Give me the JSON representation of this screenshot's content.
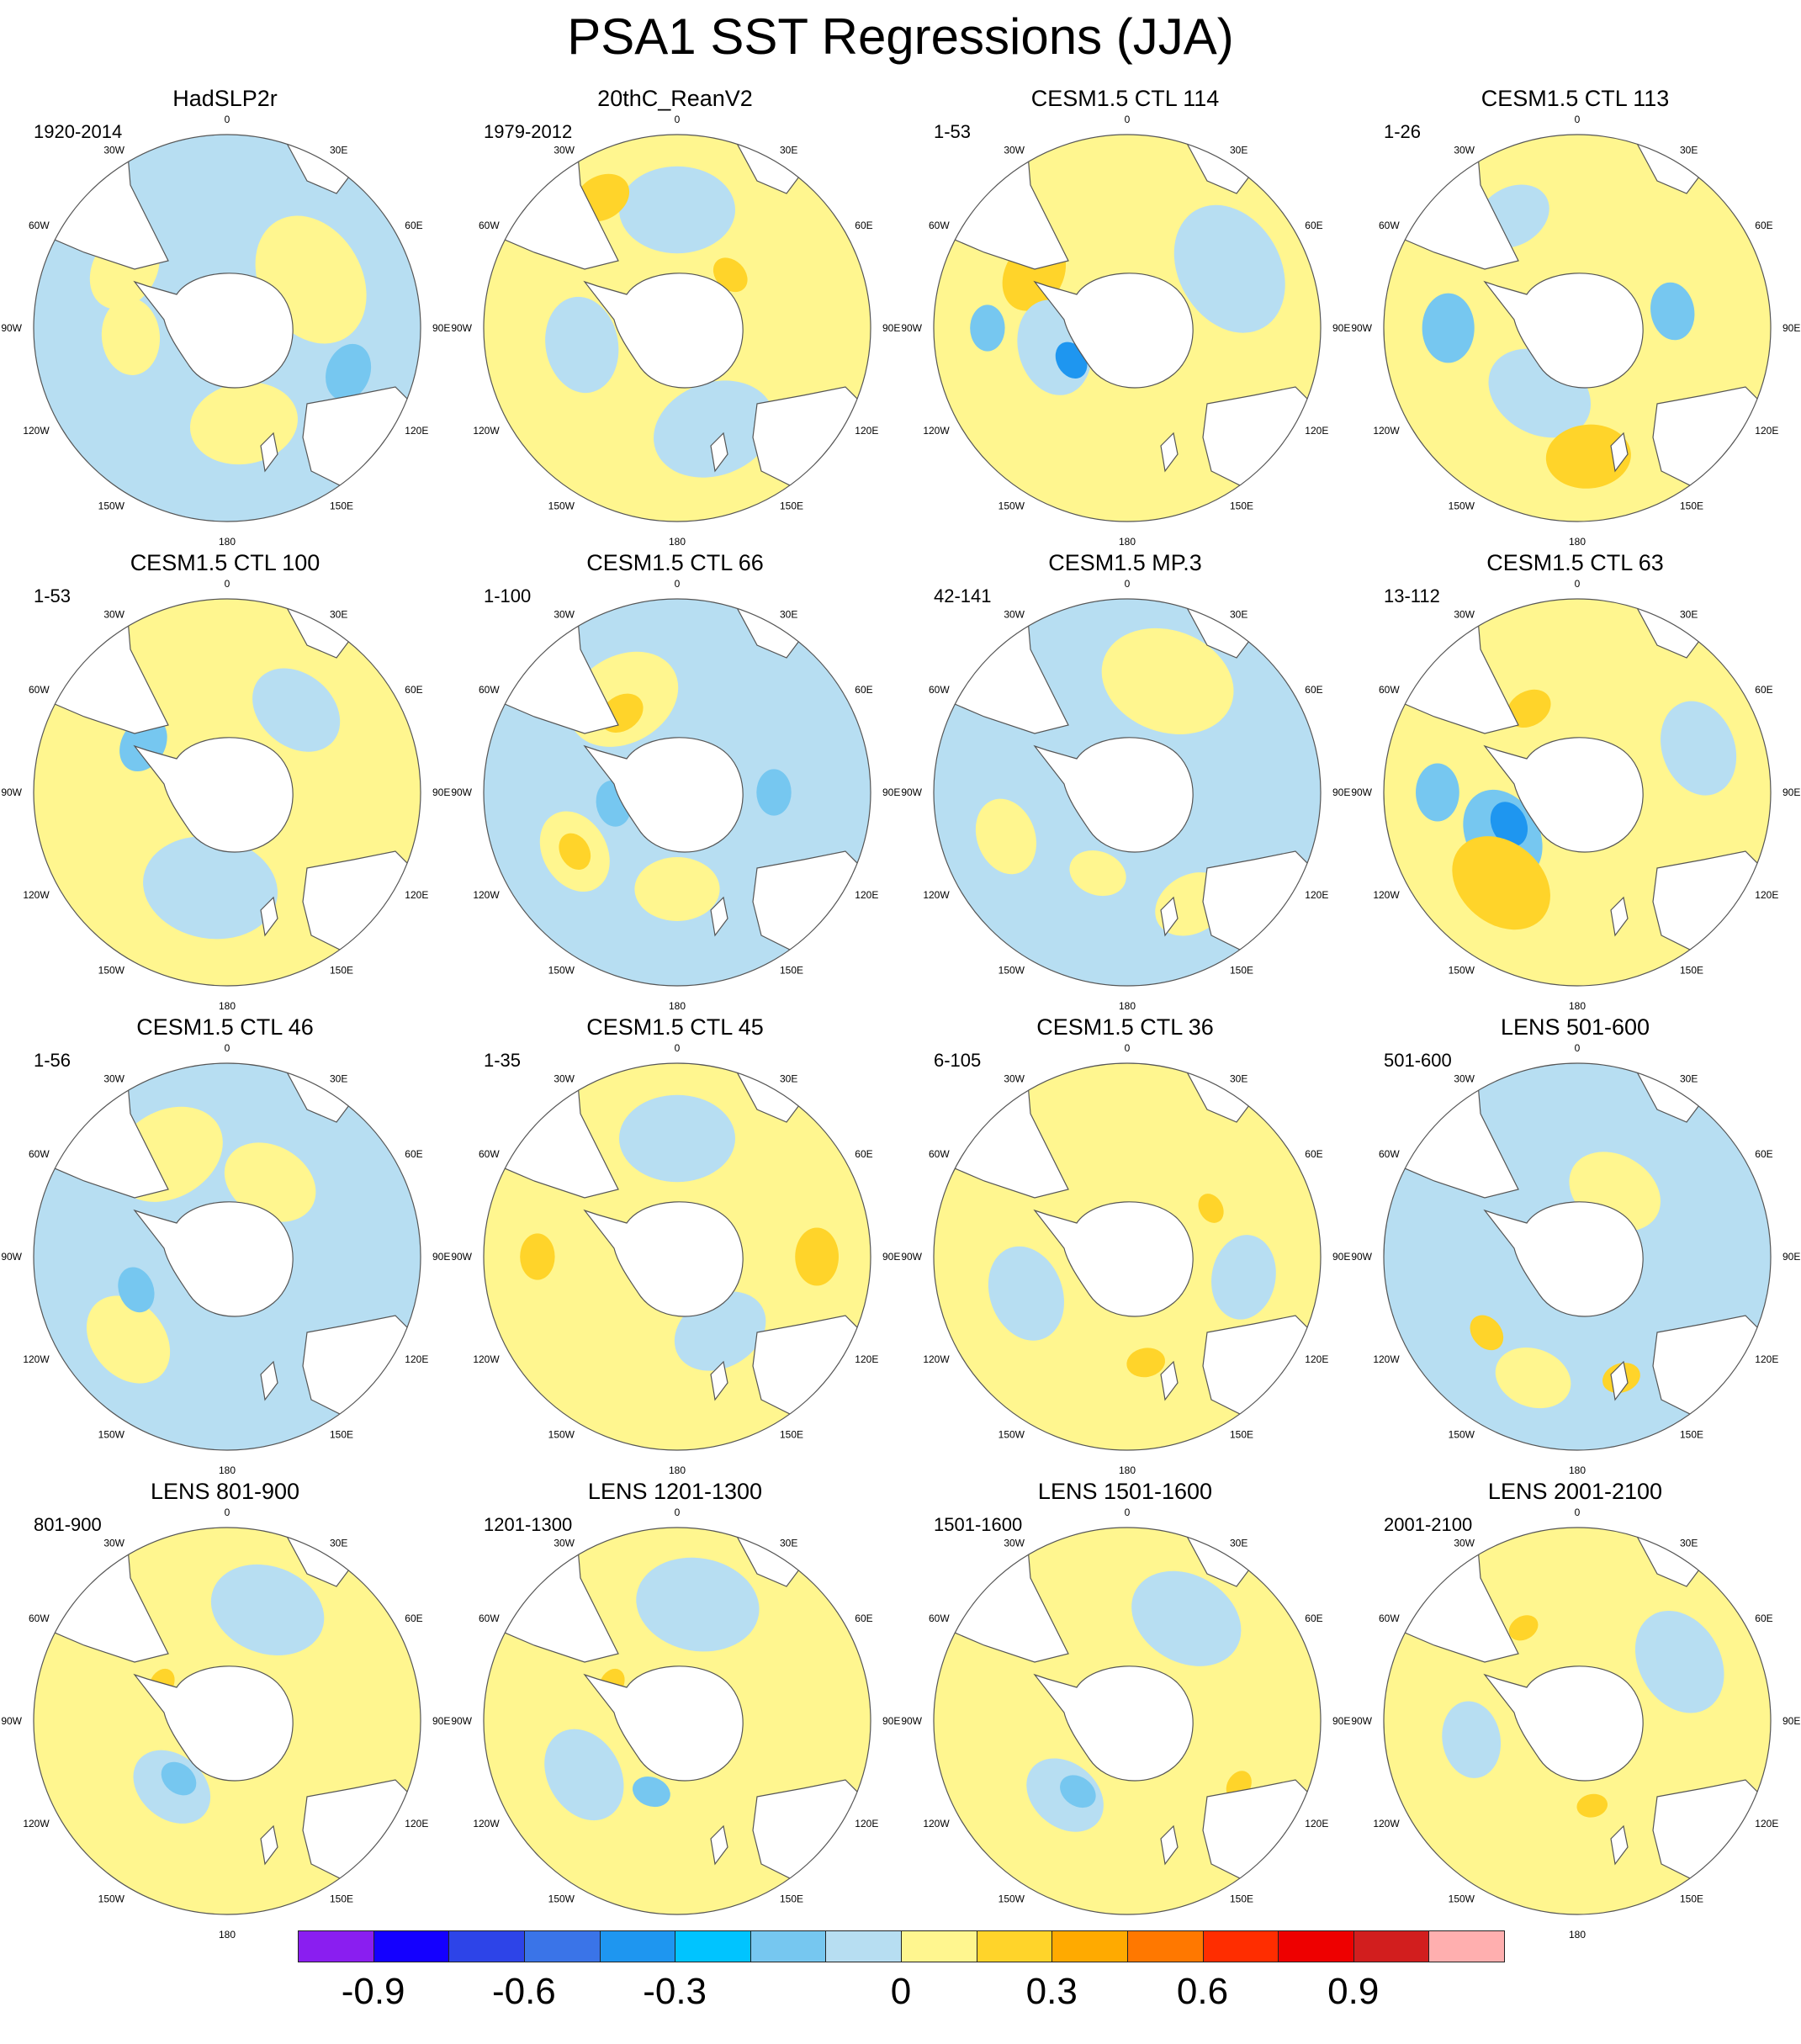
{
  "title": "PSA1 SST Regressions (JJA)",
  "colors": {
    "ocean_pos_weak": "#fff68f",
    "ocean_neg_weak": "#b7def2",
    "ocean_neg_mid": "#76c7f0",
    "ocean_neg_strong": "#1e96f0",
    "ocean_pos_mid": "#ffd42a",
    "ocean_pos_strong": "#ffaa00",
    "land": "#ffffff",
    "coastline": "#555555",
    "boundary": "#555555"
  },
  "map_labels": {
    "top": "0",
    "bottom": "180",
    "left": "90W",
    "right": "90E",
    "ul1": "30W",
    "ul2": "60W",
    "ll1": "120W",
    "ll2": "150W",
    "ur1": "30E",
    "ur2": "60E",
    "lr1": "120E",
    "lr2": "150E"
  },
  "panels": [
    {
      "title": "HadSLP2r",
      "period": "1920-2014",
      "base": "neg",
      "blobs": [
        {
          "lon": 60,
          "lat": -45,
          "r": 0.35,
          "s": 1
        },
        {
          "lon": 170,
          "lat": -45,
          "r": 0.28,
          "s": 1
        },
        {
          "lon": 265,
          "lat": -45,
          "r": 0.2,
          "s": 1
        },
        {
          "lon": 300,
          "lat": -35,
          "r": 0.22,
          "s": 1
        },
        {
          "lon": 110,
          "lat": -30,
          "r": 0.15,
          "s": -2
        }
      ]
    },
    {
      "title": "20thC_ReanV2",
      "period": "1979-2012",
      "base": "pos",
      "blobs": [
        {
          "lon": 0,
          "lat": -35,
          "r": 0.3,
          "s": -1
        },
        {
          "lon": 160,
          "lat": -40,
          "r": 0.32,
          "s": -1
        },
        {
          "lon": 260,
          "lat": -45,
          "r": 0.25,
          "s": -1
        },
        {
          "lon": 330,
          "lat": -20,
          "r": 0.15,
          "s": 2
        },
        {
          "lon": 45,
          "lat": -55,
          "r": 0.1,
          "s": 2
        }
      ]
    },
    {
      "title": "CESM1.5 CTL 114",
      "period": "1-53",
      "base": "pos",
      "blobs": [
        {
          "lon": 60,
          "lat": -35,
          "r": 0.35,
          "s": -1
        },
        {
          "lon": 300,
          "lat": -40,
          "r": 0.2,
          "s": 2
        },
        {
          "lon": 255,
          "lat": -55,
          "r": 0.25,
          "s": -1
        },
        {
          "lon": 240,
          "lat": -60,
          "r": 0.1,
          "s": -3
        },
        {
          "lon": 270,
          "lat": -25,
          "r": 0.12,
          "s": -2
        }
      ]
    },
    {
      "title": "CESM1.5 CTL 113",
      "period": "1-26",
      "base": "pos",
      "blobs": [
        {
          "lon": 270,
          "lat": -30,
          "r": 0.18,
          "s": -2
        },
        {
          "lon": 210,
          "lat": -55,
          "r": 0.28,
          "s": -1
        },
        {
          "lon": 80,
          "lat": -45,
          "r": 0.15,
          "s": -2
        },
        {
          "lon": 175,
          "lat": -30,
          "r": 0.22,
          "s": 2
        },
        {
          "lon": 330,
          "lat": -30,
          "r": 0.2,
          "s": -1
        }
      ]
    },
    {
      "title": "CESM1.5 CTL 100",
      "period": "1-53",
      "base": "pos",
      "blobs": [
        {
          "lon": 190,
          "lat": -45,
          "r": 0.35,
          "s": -1
        },
        {
          "lon": 40,
          "lat": -40,
          "r": 0.25,
          "s": -1
        },
        {
          "lon": 300,
          "lat": -45,
          "r": 0.15,
          "s": -2
        }
      ]
    },
    {
      "title": "CESM1.5 CTL 66",
      "period": "1-100",
      "base": "neg",
      "blobs": [
        {
          "lon": 330,
          "lat": -40,
          "r": 0.3,
          "s": 1
        },
        {
          "lon": 325,
          "lat": -45,
          "r": 0.12,
          "s": 2
        },
        {
          "lon": 240,
          "lat": -35,
          "r": 0.22,
          "s": 1
        },
        {
          "lon": 240,
          "lat": -35,
          "r": 0.1,
          "s": 2
        },
        {
          "lon": 180,
          "lat": -45,
          "r": 0.22,
          "s": 1
        },
        {
          "lon": 260,
          "lat": -60,
          "r": 0.12,
          "s": -2
        },
        {
          "lon": 90,
          "lat": -45,
          "r": 0.12,
          "s": -2
        }
      ]
    },
    {
      "title": "CESM1.5 MP.3",
      "period": "42-141",
      "base": "neg",
      "blobs": [
        {
          "lon": 20,
          "lat": -35,
          "r": 0.35,
          "s": 1
        },
        {
          "lon": 250,
          "lat": -30,
          "r": 0.2,
          "s": 1
        },
        {
          "lon": 150,
          "lat": -30,
          "r": 0.2,
          "s": 1
        },
        {
          "lon": 200,
          "lat": -50,
          "r": 0.15,
          "s": 1
        }
      ]
    },
    {
      "title": "CESM1.5 CTL 63",
      "period": "13-112",
      "base": "pos",
      "blobs": [
        {
          "lon": 240,
          "lat": -50,
          "r": 0.25,
          "s": -2
        },
        {
          "lon": 245,
          "lat": -55,
          "r": 0.12,
          "s": -3
        },
        {
          "lon": 220,
          "lat": -35,
          "r": 0.28,
          "s": 2
        },
        {
          "lon": 330,
          "lat": -45,
          "r": 0.12,
          "s": 2
        },
        {
          "lon": 70,
          "lat": -30,
          "r": 0.25,
          "s": -1
        },
        {
          "lon": 270,
          "lat": -25,
          "r": 0.15,
          "s": -2
        }
      ]
    },
    {
      "title": "CESM1.5 CTL 46",
      "period": "1-56",
      "base": "neg",
      "blobs": [
        {
          "lon": 330,
          "lat": -35,
          "r": 0.3,
          "s": 1
        },
        {
          "lon": 30,
          "lat": -50,
          "r": 0.25,
          "s": 1
        },
        {
          "lon": 230,
          "lat": -30,
          "r": 0.25,
          "s": 1
        },
        {
          "lon": 250,
          "lat": -45,
          "r": 0.12,
          "s": -2
        }
      ]
    },
    {
      "title": "CESM1.5 CTL 45",
      "period": "1-35",
      "base": "pos",
      "blobs": [
        {
          "lon": 0,
          "lat": -35,
          "r": 0.3,
          "s": -1
        },
        {
          "lon": 150,
          "lat": -50,
          "r": 0.25,
          "s": -1
        },
        {
          "lon": 90,
          "lat": -25,
          "r": 0.15,
          "s": 2
        },
        {
          "lon": 270,
          "lat": -25,
          "r": 0.12,
          "s": 2
        }
      ]
    },
    {
      "title": "CESM1.5 CTL 36",
      "period": "6-105",
      "base": "pos",
      "blobs": [
        {
          "lon": 250,
          "lat": -40,
          "r": 0.25,
          "s": -1
        },
        {
          "lon": 100,
          "lat": -35,
          "r": 0.22,
          "s": -1
        },
        {
          "lon": 170,
          "lat": -40,
          "r": 0.1,
          "s": 2
        },
        {
          "lon": 60,
          "lat": -45,
          "r": 0.08,
          "s": 2
        }
      ]
    },
    {
      "title": "LENS 501-600",
      "period": "501-600",
      "base": "neg",
      "blobs": [
        {
          "lon": 30,
          "lat": -55,
          "r": 0.25,
          "s": 1
        },
        {
          "lon": 200,
          "lat": -30,
          "r": 0.2,
          "s": 1
        },
        {
          "lon": 230,
          "lat": -35,
          "r": 0.1,
          "s": 2
        },
        {
          "lon": 160,
          "lat": -30,
          "r": 0.1,
          "s": 2
        }
      ]
    },
    {
      "title": "LENS 801-900",
      "period": "801-900",
      "base": "pos",
      "blobs": [
        {
          "lon": 20,
          "lat": -35,
          "r": 0.3,
          "s": -1
        },
        {
          "lon": 220,
          "lat": -50,
          "r": 0.22,
          "s": -1
        },
        {
          "lon": 220,
          "lat": -55,
          "r": 0.1,
          "s": -2
        },
        {
          "lon": 300,
          "lat": -55,
          "r": 0.08,
          "s": 2
        }
      ]
    },
    {
      "title": "LENS 1201-1300",
      "period": "1201-1300",
      "base": "pos",
      "blobs": [
        {
          "lon": 10,
          "lat": -35,
          "r": 0.32,
          "s": -1
        },
        {
          "lon": 240,
          "lat": -40,
          "r": 0.25,
          "s": -1
        },
        {
          "lon": 200,
          "lat": -55,
          "r": 0.1,
          "s": -2
        },
        {
          "lon": 300,
          "lat": -55,
          "r": 0.08,
          "s": 2
        }
      ]
    },
    {
      "title": "LENS 1501-1600",
      "period": "1501-1600",
      "base": "pos",
      "blobs": [
        {
          "lon": 30,
          "lat": -35,
          "r": 0.3,
          "s": -1
        },
        {
          "lon": 220,
          "lat": -45,
          "r": 0.22,
          "s": -1
        },
        {
          "lon": 215,
          "lat": -50,
          "r": 0.1,
          "s": -2
        },
        {
          "lon": 120,
          "lat": -30,
          "r": 0.08,
          "s": 2
        }
      ]
    },
    {
      "title": "LENS 2001-2100",
      "period": "2001-2100",
      "base": "pos",
      "blobs": [
        {
          "lon": 60,
          "lat": -35,
          "r": 0.28,
          "s": -1
        },
        {
          "lon": 260,
          "lat": -40,
          "r": 0.2,
          "s": -1
        },
        {
          "lon": 170,
          "lat": -50,
          "r": 0.08,
          "s": 2
        },
        {
          "lon": 330,
          "lat": -40,
          "r": 0.08,
          "s": 2
        }
      ]
    }
  ],
  "colorbar": {
    "colors": [
      "#8a1ef0",
      "#1400ff",
      "#2d44e8",
      "#3a74e8",
      "#1e96f0",
      "#00c4ff",
      "#76c7f0",
      "#b7def2",
      "#fff68f",
      "#ffd42a",
      "#ffaa00",
      "#ff7800",
      "#ff2d00",
      "#ee0000",
      "#d21e1e",
      "#ffafaf"
    ],
    "labels": [
      "-0.9",
      "-0.6",
      "-0.3",
      "0",
      "0.3",
      "0.6",
      "0.9"
    ],
    "label_values": [
      -0.9,
      -0.6,
      -0.3,
      0,
      0.3,
      0.6,
      0.9
    ],
    "levels": [
      -1.05,
      -0.9,
      -0.75,
      -0.6,
      -0.45,
      -0.3,
      -0.15,
      -0.05,
      0.05,
      0.15,
      0.3,
      0.45,
      0.6,
      0.75,
      0.9,
      1.05
    ]
  }
}
